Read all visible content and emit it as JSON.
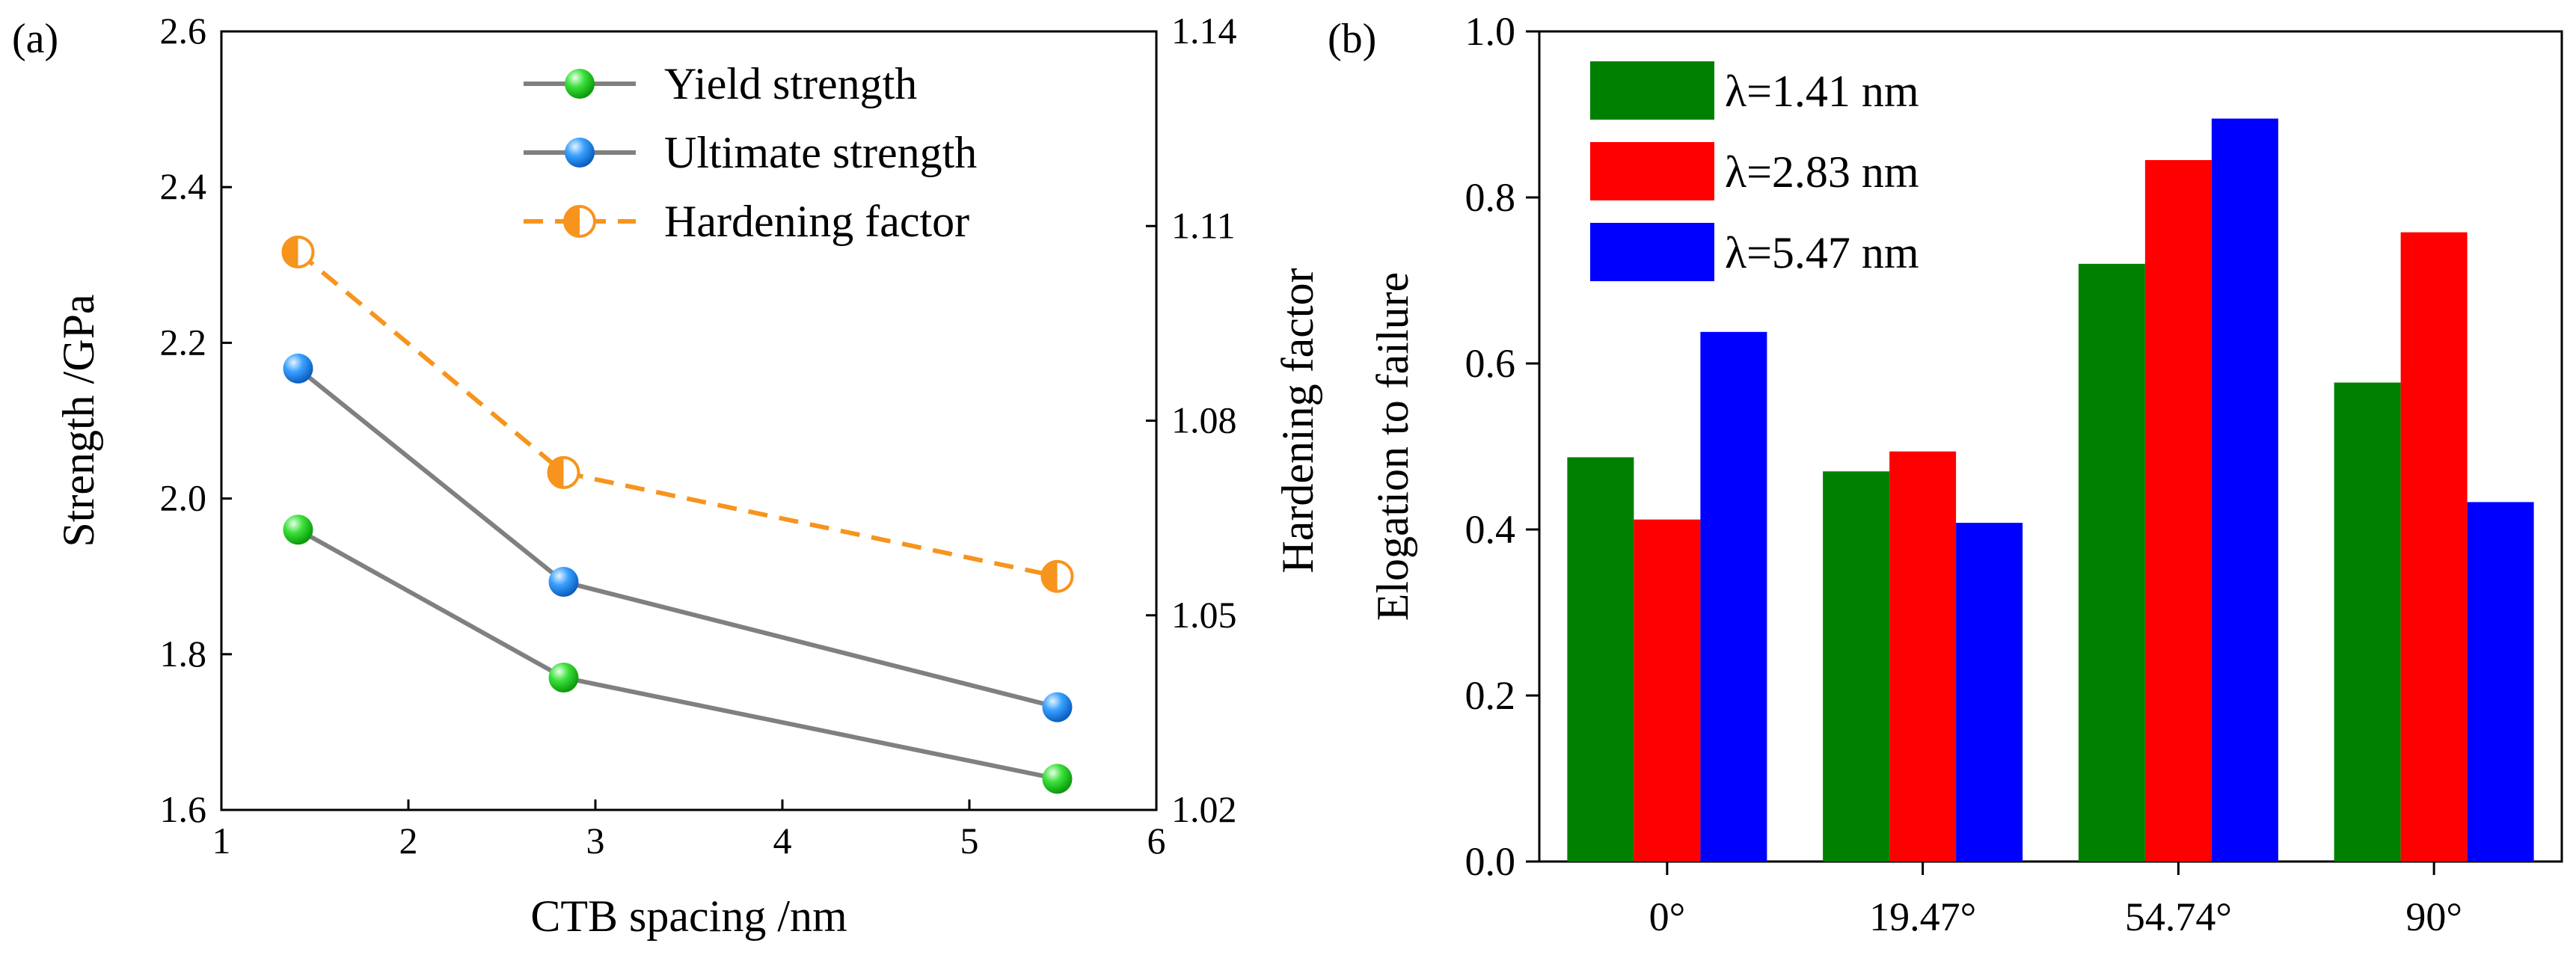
{
  "figure": {
    "panel_a_label": "(a)",
    "panel_b_label": "(b)"
  },
  "chart_data": [
    {
      "panel": "(a)",
      "type": "line",
      "xlabel": "CTB spacing  /nm",
      "ylabel_left": "Strength      /GPa",
      "ylabel_right": "Hardening  factor",
      "xlim": [
        1,
        6
      ],
      "ylim_left": [
        1.6,
        2.6
      ],
      "ylim_right": [
        1.02,
        1.14
      ],
      "xticks": [
        "1",
        "2",
        "3",
        "4",
        "5",
        "6"
      ],
      "yticks_left": [
        "1.6",
        "1.8",
        "2.0",
        "2.2",
        "2.4",
        "2.6"
      ],
      "yticks_right": [
        "1.02",
        "1.05",
        "1.08",
        "1.11",
        "1.14"
      ],
      "legend_position": "top-right",
      "x": [
        1.41,
        2.83,
        5.47
      ],
      "series": [
        {
          "name": "Yield strength",
          "axis": "left",
          "values": [
            1.96,
            1.77,
            1.64
          ],
          "line_color": "#808080",
          "marker_color": "#22dd22",
          "dashed": false
        },
        {
          "name": "Ultimate strength",
          "axis": "left",
          "values": [
            2.167,
            1.893,
            1.732
          ],
          "line_color": "#808080",
          "marker_color": "#1e90ff",
          "dashed": false
        },
        {
          "name": "Hardening  factor",
          "axis": "right",
          "values": [
            1.106,
            1.072,
            1.056
          ],
          "line_color": "#f7941d",
          "marker_color": "#f7941d",
          "dashed": true
        }
      ]
    },
    {
      "panel": "(b)",
      "type": "bar",
      "ylabel": "Elogation to failure",
      "ylim": [
        0,
        1.0
      ],
      "yticks": [
        "0.0",
        "0.2",
        "0.4",
        "0.6",
        "0.8",
        "1.0"
      ],
      "categories": [
        "0°",
        "19.47°",
        "54.74°",
        "90°"
      ],
      "legend_position": "top-left",
      "series": [
        {
          "name": "λ=1.41 nm",
          "color": "#008000",
          "values": [
            0.487,
            0.47,
            0.72,
            0.577
          ]
        },
        {
          "name": "λ=2.83 nm",
          "color": "#ff0000",
          "values": [
            0.412,
            0.494,
            0.845,
            0.758
          ]
        },
        {
          "name": "λ=5.47 nm",
          "color": "#0000ff",
          "values": [
            0.638,
            0.408,
            0.895,
            0.433
          ]
        }
      ]
    }
  ]
}
